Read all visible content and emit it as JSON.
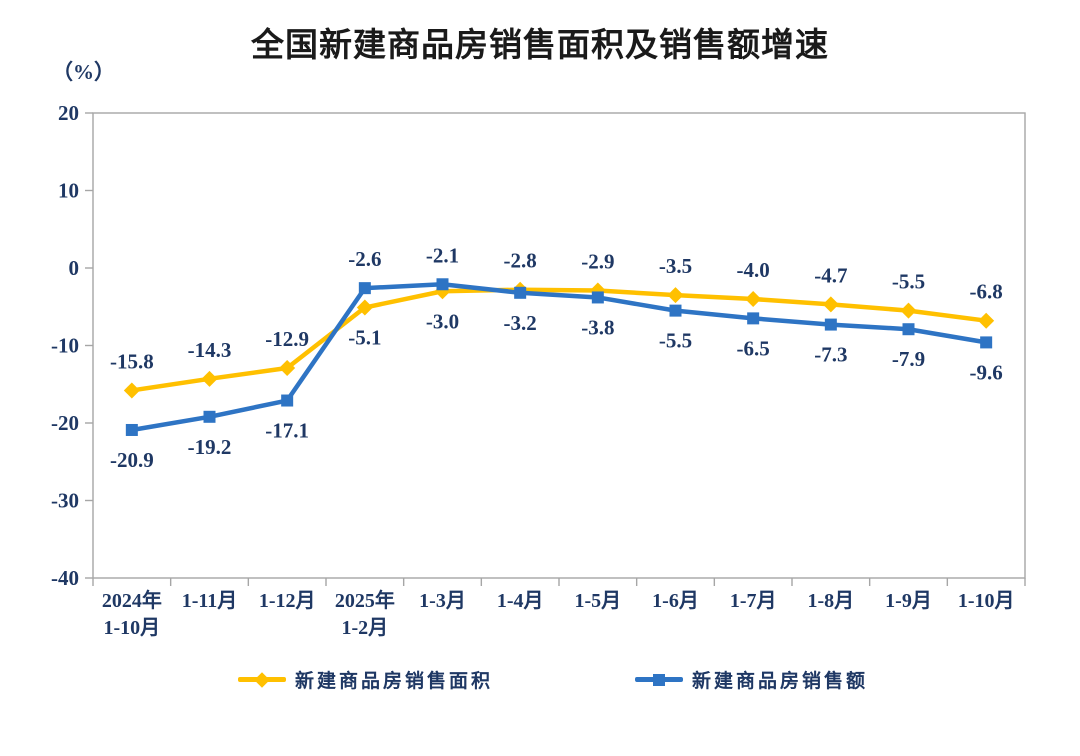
{
  "title": "全国新建商品房销售面积及销售额增速",
  "y_unit_label": "（%）",
  "colors": {
    "sales_area_series": "#FFC000",
    "sales_amount_series": "#2E74C4",
    "label_text": "#1F3864",
    "axis": "#A6A6A6",
    "title_text": "#1A1A1A"
  },
  "chart_data": {
    "type": "line",
    "title": "全国新建商品房销售面积及销售额增速",
    "xlabel": "",
    "ylabel": "（%）",
    "categories": [
      "2024年\n1-10月",
      "1-11月",
      "1-12月",
      "2025年\n1-2月",
      "1-3月",
      "1-4月",
      "1-5月",
      "1-6月",
      "1-7月",
      "1-8月",
      "1-9月",
      "1-10月"
    ],
    "series": [
      {
        "name": "新建商品房销售面积",
        "color": "#FFC000",
        "marker": "diamond",
        "values": [
          -15.8,
          -14.3,
          -12.9,
          -5.1,
          -3.0,
          -2.8,
          -2.9,
          -3.5,
          -4.0,
          -4.7,
          -5.5,
          -6.8
        ],
        "label_side": [
          "above",
          "above",
          "above",
          "below",
          "below",
          "above",
          "above",
          "above",
          "above",
          "above",
          "above",
          "above"
        ]
      },
      {
        "name": "新建商品房销售额",
        "color": "#2E74C4",
        "marker": "square",
        "values": [
          -20.9,
          -19.2,
          -17.1,
          -2.6,
          -2.1,
          -3.2,
          -3.8,
          -5.5,
          -6.5,
          -7.3,
          -7.9,
          -9.6
        ],
        "label_side": [
          "below",
          "below",
          "below",
          "above",
          "above",
          "below",
          "below",
          "below",
          "below",
          "below",
          "below",
          "below"
        ]
      }
    ],
    "ylim": [
      -40,
      20
    ],
    "y_ticks": [
      20,
      10,
      0,
      -10,
      -20,
      -30,
      -40
    ],
    "grid": false,
    "legend_position": "bottom"
  }
}
